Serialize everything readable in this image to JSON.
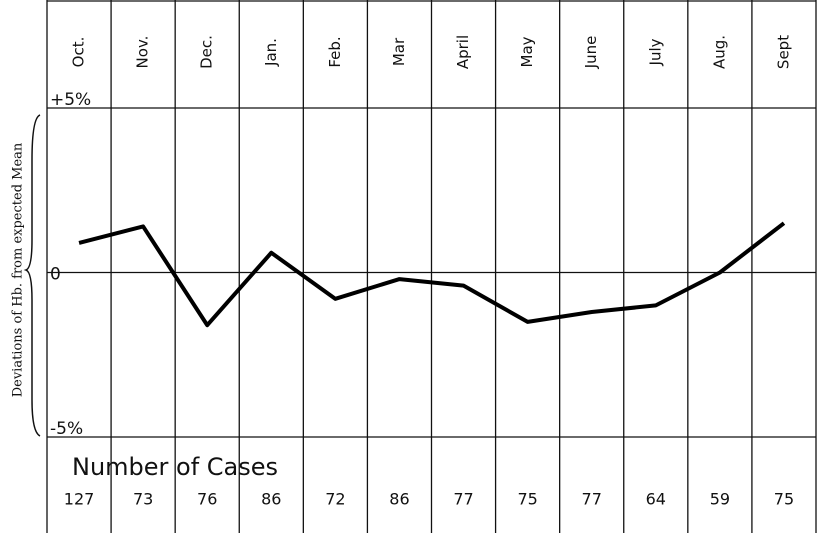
{
  "chart_data": {
    "type": "line",
    "y_label": "Deviations of Hb. from expected Mean",
    "categories": [
      "Oct.",
      "Nov.",
      "Dec.",
      "Jan.",
      "Feb.",
      "Mar",
      "April",
      "May",
      "June",
      "July",
      "Aug.",
      "Sept"
    ],
    "series": [
      {
        "name": "Hb. deviation",
        "color": "#000000",
        "values": [
          0.9,
          1.4,
          -1.6,
          0.6,
          -0.8,
          -0.2,
          -0.4,
          -1.5,
          -1.2,
          -1.0,
          0.0,
          1.5
        ]
      }
    ],
    "ylim": [
      -5,
      5
    ],
    "yticks": [
      {
        "value": 5,
        "label": "+5%"
      },
      0,
      {
        "value": -5,
        "label": "-5%"
      }
    ],
    "grid": true,
    "cases_label": "Number of Cases",
    "cases": [
      127,
      73,
      76,
      86,
      72,
      86,
      77,
      75,
      77,
      64,
      59,
      75
    ]
  }
}
